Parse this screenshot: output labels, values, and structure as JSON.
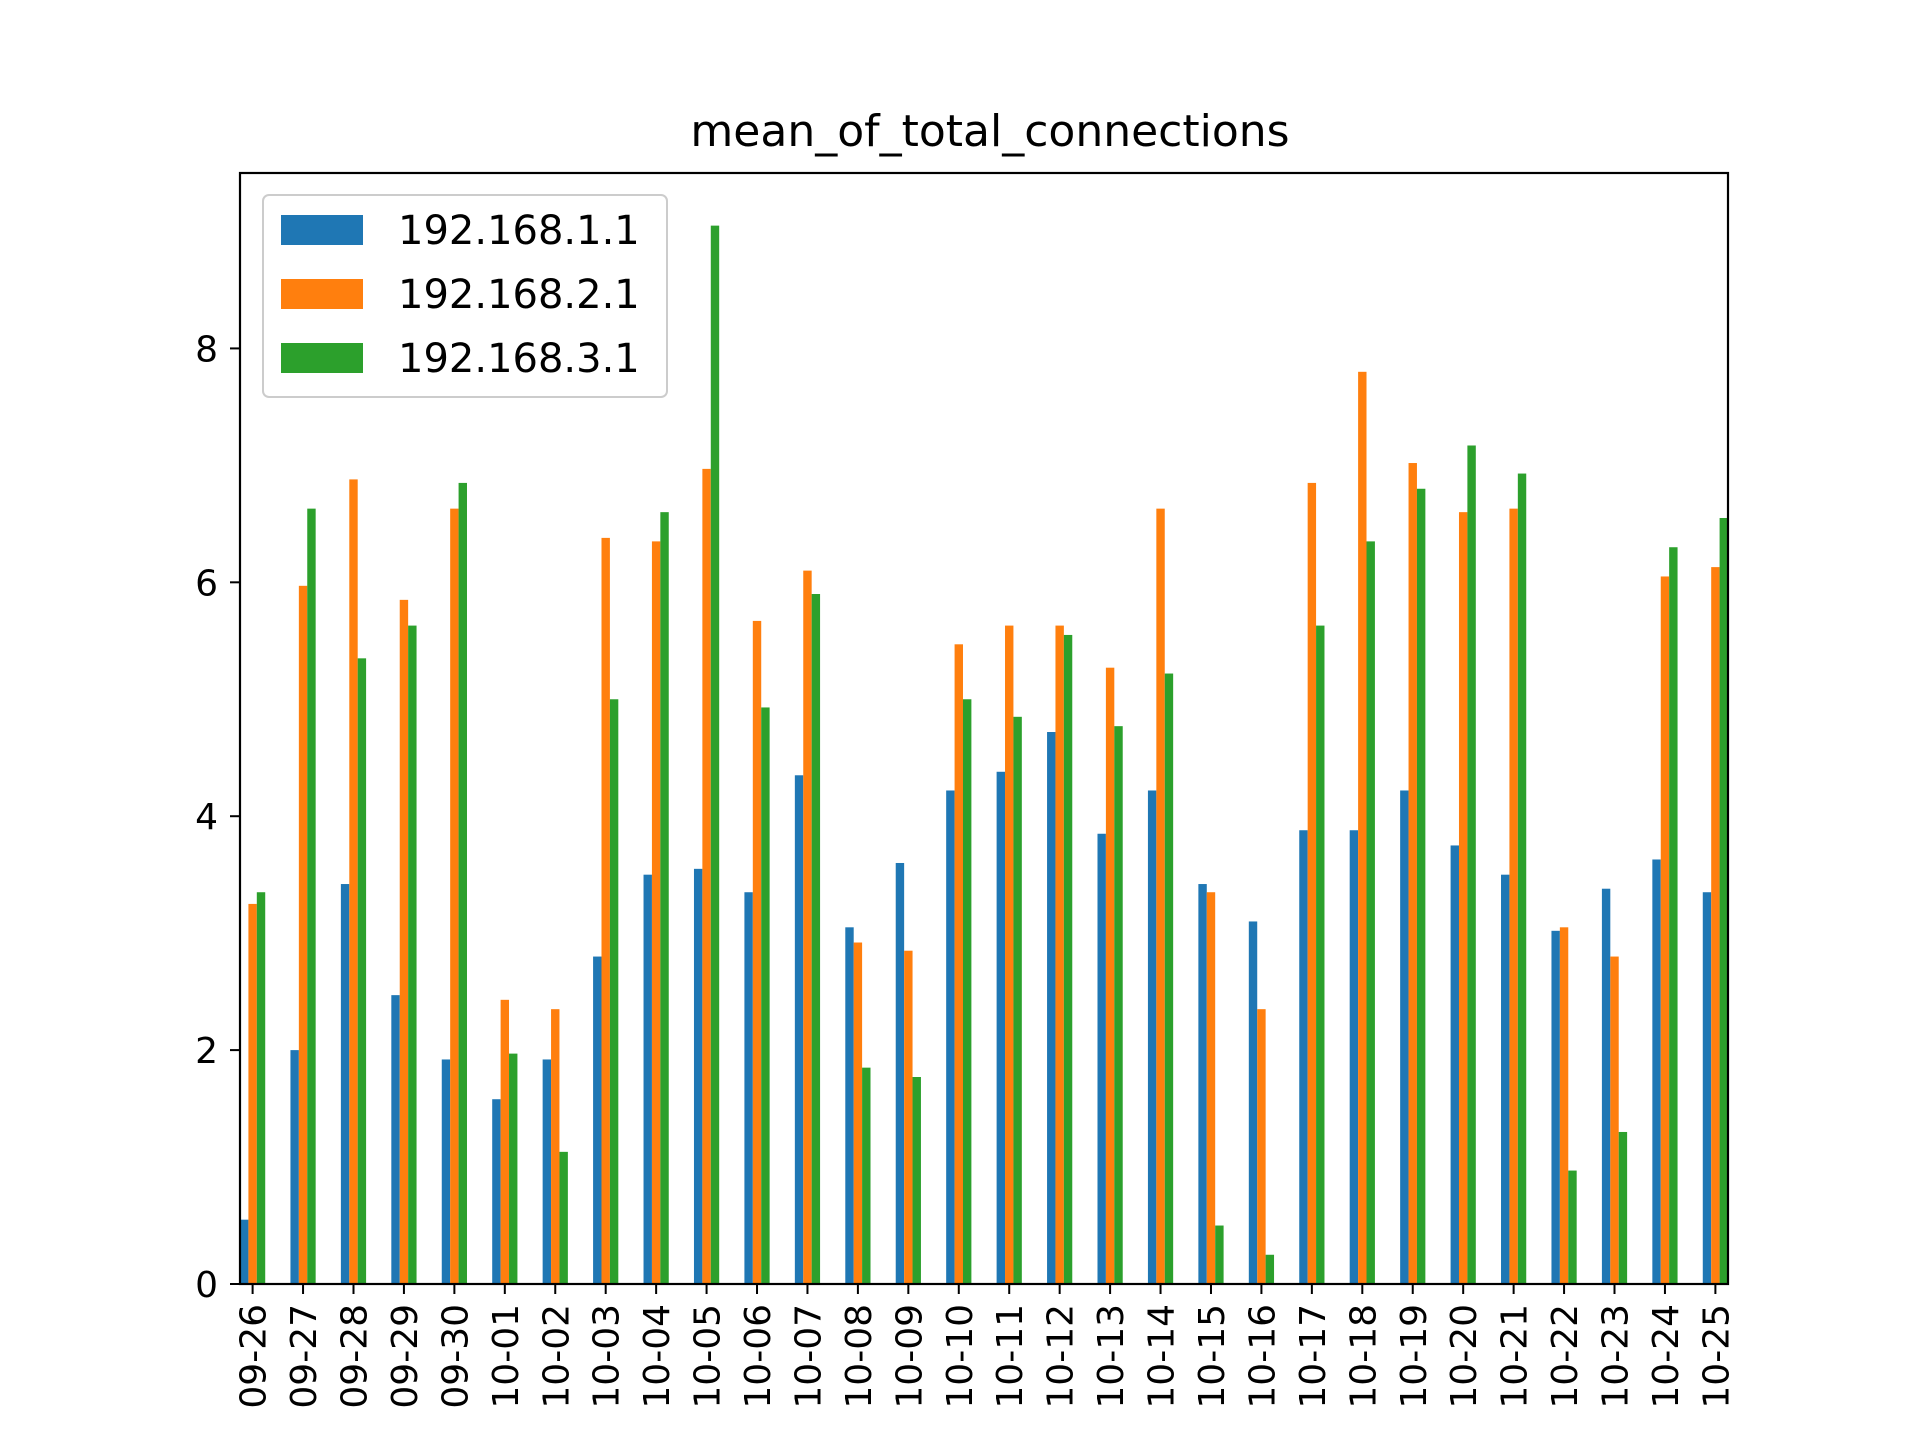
{
  "chart_data": {
    "type": "bar",
    "title": "mean_of_total_connections",
    "xlabel": "",
    "ylabel": "",
    "ylim": [
      0,
      9.5
    ],
    "yticks": [
      0,
      2,
      4,
      6,
      8
    ],
    "grid": false,
    "legend_position": "top-left",
    "categories": [
      "09-26",
      "09-27",
      "09-28",
      "09-29",
      "09-30",
      "10-01",
      "10-02",
      "10-03",
      "10-04",
      "10-05",
      "10-06",
      "10-07",
      "10-08",
      "10-09",
      "10-10",
      "10-11",
      "10-12",
      "10-13",
      "10-14",
      "10-15",
      "10-16",
      "10-17",
      "10-18",
      "10-19",
      "10-20",
      "10-21",
      "10-22",
      "10-23",
      "10-24",
      "10-25"
    ],
    "series": [
      {
        "name": "192.168.1.1",
        "color": "#1f77b4",
        "values": [
          0.55,
          2.0,
          3.42,
          2.47,
          1.92,
          1.58,
          1.92,
          2.8,
          3.5,
          3.55,
          3.35,
          4.35,
          3.05,
          3.6,
          4.22,
          4.38,
          4.72,
          3.85,
          4.22,
          3.42,
          3.1,
          3.88,
          3.88,
          4.22,
          3.75,
          3.5,
          3.02,
          3.38,
          3.63,
          3.35
        ]
      },
      {
        "name": "192.168.2.1",
        "color": "#ff7f0e",
        "values": [
          3.25,
          5.97,
          6.88,
          5.85,
          6.63,
          2.43,
          2.35,
          6.38,
          6.35,
          6.97,
          5.67,
          6.1,
          2.92,
          2.85,
          5.47,
          5.63,
          5.63,
          5.27,
          6.63,
          3.35,
          2.35,
          6.85,
          7.8,
          7.02,
          6.6,
          6.63,
          3.05,
          2.8,
          6.05,
          6.13
        ]
      },
      {
        "name": "192.168.3.1",
        "color": "#2ca02c",
        "values": [
          3.35,
          6.63,
          5.35,
          5.63,
          6.85,
          1.97,
          1.13,
          5.0,
          6.6,
          9.05,
          4.93,
          5.9,
          1.85,
          1.77,
          5.0,
          4.85,
          5.55,
          4.77,
          5.22,
          0.5,
          0.25,
          5.63,
          6.35,
          6.8,
          7.17,
          6.93,
          0.97,
          1.3,
          6.3,
          6.55
        ]
      }
    ]
  }
}
